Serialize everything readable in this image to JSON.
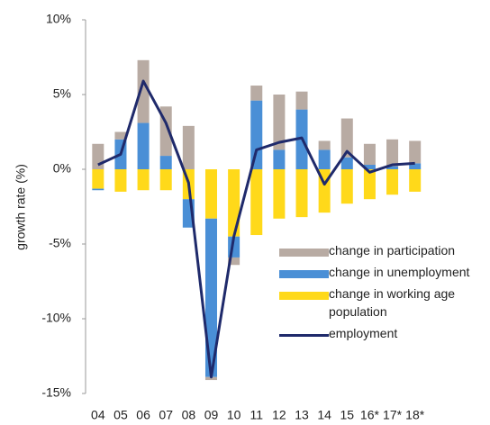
{
  "chart_data": {
    "type": "bar-line",
    "y_label": "growth rate (%)",
    "categories": [
      "04",
      "05",
      "06",
      "07",
      "08",
      "09",
      "10",
      "11",
      "12",
      "13",
      "14",
      "15",
      "16*",
      "17*",
      "18*"
    ],
    "series": [
      {
        "name": "change in participation",
        "kind": "bar",
        "color": "#b8aba3",
        "values": [
          1.7,
          0.5,
          4.2,
          3.3,
          2.9,
          -0.2,
          -0.5,
          1.0,
          3.7,
          1.2,
          0.6,
          2.6,
          1.4,
          1.8,
          1.5
        ]
      },
      {
        "name": "change in unemployment",
        "kind": "bar",
        "color": "#4a8fd6",
        "values": [
          -0.1,
          2.0,
          3.1,
          0.9,
          -1.9,
          -10.6,
          -1.4,
          4.6,
          1.3,
          4.0,
          1.3,
          0.8,
          0.3,
          0.2,
          0.4
        ]
      },
      {
        "name": "change in working age population",
        "kind": "bar",
        "color": "#ffd91a",
        "values": [
          -1.3,
          -1.5,
          -1.4,
          -1.4,
          -2.0,
          -3.3,
          -4.5,
          -4.4,
          -3.3,
          -3.2,
          -2.9,
          -2.3,
          -2.0,
          -1.7,
          -1.5
        ]
      },
      {
        "name": "employment",
        "kind": "line",
        "color": "#1f2a6b",
        "values": [
          0.3,
          1.0,
          5.9,
          3.1,
          -0.9,
          -13.9,
          -4.5,
          1.3,
          1.8,
          2.1,
          -1.0,
          1.2,
          -0.2,
          0.3,
          0.4
        ]
      }
    ],
    "ylim": [
      -15,
      10
    ],
    "yticks": [
      {
        "value": -15,
        "label": "-15%"
      },
      {
        "value": -10,
        "label": "-10%"
      },
      {
        "value": -5,
        "label": "-5%"
      },
      {
        "value": 0,
        "label": "0%"
      },
      {
        "value": 5,
        "label": "5%"
      },
      {
        "value": 10,
        "label": "10%"
      }
    ],
    "legend": "right"
  }
}
